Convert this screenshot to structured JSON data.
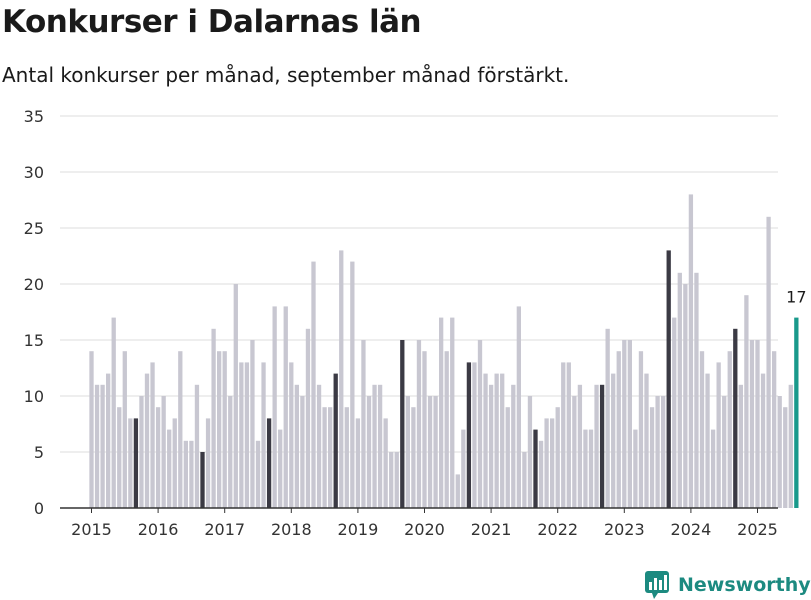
{
  "title": "Konkurser i Dalarnas län",
  "subtitle": "Antal konkurser per månad, september månad förstärkt.",
  "brand": "Newsworthy",
  "colors": {
    "bar": "#c8c7d1",
    "highlight": "#3b3a44",
    "latest": "#19998b",
    "grid": "#dcdcdc",
    "axis": "#333333",
    "brand": "#1c8a80"
  },
  "chart_data": {
    "type": "bar",
    "title": "Konkurser i Dalarnas län",
    "subtitle": "Antal konkurser per månad, september månad förstärkt.",
    "xlabel": "",
    "ylabel": "",
    "ylim": [
      0,
      35
    ],
    "yticks": [
      0,
      5,
      10,
      15,
      20,
      25,
      30,
      35
    ],
    "year_labels": [
      "2015",
      "2016",
      "2017",
      "2018",
      "2019",
      "2020",
      "2021",
      "2022",
      "2023",
      "2024",
      "2025"
    ],
    "start_month": "2015-01",
    "highlight_month": 9,
    "annotation": "17",
    "grid": true,
    "values": [
      14,
      11,
      11,
      12,
      17,
      9,
      14,
      8,
      8,
      10,
      12,
      13,
      9,
      10,
      7,
      8,
      14,
      6,
      6,
      11,
      5,
      8,
      16,
      14,
      14,
      10,
      20,
      13,
      13,
      15,
      6,
      13,
      8,
      18,
      7,
      18,
      13,
      11,
      10,
      16,
      22,
      11,
      9,
      9,
      12,
      23,
      9,
      22,
      8,
      15,
      10,
      11,
      11,
      8,
      5,
      5,
      15,
      10,
      9,
      15,
      14,
      10,
      10,
      17,
      14,
      17,
      3,
      7,
      13,
      13,
      15,
      12,
      11,
      12,
      12,
      9,
      11,
      18,
      5,
      10,
      7,
      6,
      8,
      8,
      9,
      13,
      13,
      10,
      11,
      7,
      7,
      11,
      11,
      16,
      12,
      14,
      15,
      15,
      7,
      14,
      12,
      9,
      10,
      10,
      23,
      17,
      21,
      20,
      28,
      21,
      14,
      12,
      7,
      13,
      10,
      14,
      16,
      11,
      19,
      15,
      15,
      12,
      26,
      14,
      10,
      9,
      11,
      17
    ]
  }
}
